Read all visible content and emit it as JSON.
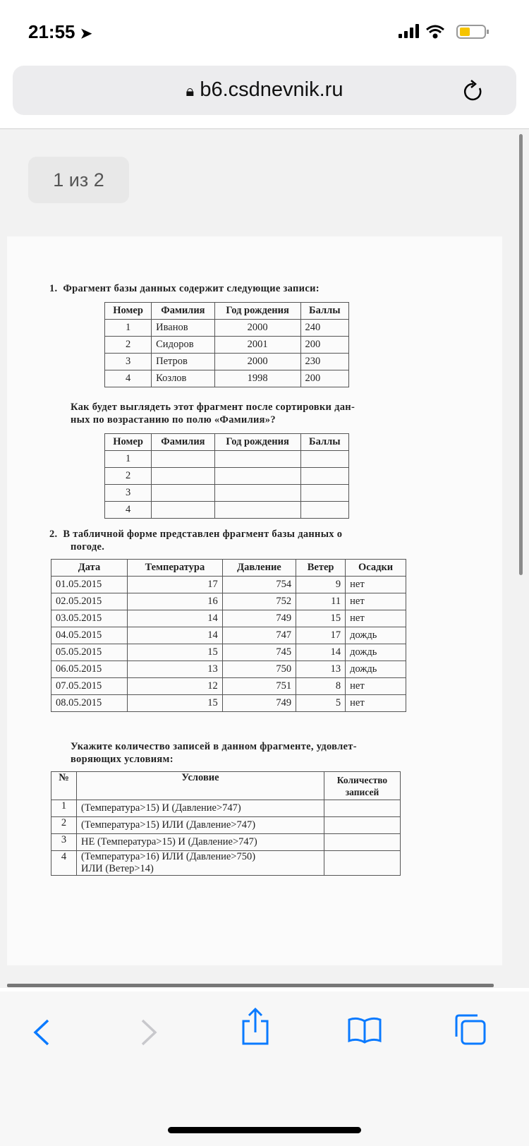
{
  "status_bar": {
    "time": "21:55",
    "location_icon": "location-arrow-icon",
    "signal_icon": "cellular-signal-icon",
    "wifi_icon": "wifi-icon",
    "battery_icon": "battery-low-icon",
    "battery_color": "#f6c400"
  },
  "browser": {
    "url": "b6.csdnevnik.ru",
    "lock_icon": "lock-icon",
    "reload_icon": "reload-icon"
  },
  "viewer": {
    "page_indicator": "1 из 2"
  },
  "document": {
    "q1": {
      "number": "1.",
      "text": "Фрагмент базы данных содержит следующие записи:",
      "headers": [
        "Номер",
        "Фамилия",
        "Год рождения",
        "Баллы"
      ],
      "rows": [
        [
          "1",
          "Иванов",
          "2000",
          "240"
        ],
        [
          "2",
          "Сидоров",
          "2001",
          "200"
        ],
        [
          "3",
          "Петров",
          "2000",
          "230"
        ],
        [
          "4",
          "Козлов",
          "1998",
          "200"
        ]
      ],
      "question_line1": "Как будет выглядеть этот фрагмент после сортировки дан-",
      "question_line2": "ных по возрастанию по полю «Фамилия»?",
      "answer_rows": [
        "1",
        "2",
        "3",
        "4"
      ]
    },
    "q2": {
      "number": "2.",
      "text_line1": "В табличной форме представлен фрагмент базы данных о",
      "text_line2": "погоде.",
      "headers": [
        "Дата",
        "Температура",
        "Давление",
        "Ветер",
        "Осадки"
      ],
      "rows": [
        [
          "01.05.2015",
          "17",
          "754",
          "9",
          "нет"
        ],
        [
          "02.05.2015",
          "16",
          "752",
          "11",
          "нет"
        ],
        [
          "03.05.2015",
          "14",
          "749",
          "15",
          "нет"
        ],
        [
          "04.05.2015",
          "14",
          "747",
          "17",
          "дождь"
        ],
        [
          "05.05.2015",
          "15",
          "745",
          "14",
          "дождь"
        ],
        [
          "06.05.2015",
          "13",
          "750",
          "13",
          "дождь"
        ],
        [
          "07.05.2015",
          "12",
          "751",
          "8",
          "нет"
        ],
        [
          "08.05.2015",
          "15",
          "749",
          "5",
          "нет"
        ]
      ],
      "task_line1": "Укажите количество записей в данном фрагменте, удовлет-",
      "task_line2": "воряющих условиям:",
      "cond_headers": [
        "№",
        "Условие",
        "Количество",
        "записей"
      ],
      "conditions": [
        [
          "1",
          "(Температура>15) И (Давление>747)"
        ],
        [
          "2",
          "(Температура>15) ИЛИ (Давление>747)"
        ],
        [
          "3",
          "НЕ (Температура>15) И (Давление>747)"
        ],
        [
          "4",
          "(Температура>16) ИЛИ (Давление>750)",
          "ИЛИ (Ветер>14)"
        ]
      ]
    }
  },
  "toolbar": {
    "back_icon": "chevron-left-icon",
    "forward_icon": "chevron-right-icon",
    "share_icon": "share-icon",
    "bookmarks_icon": "book-icon",
    "tabs_icon": "tabs-icon"
  }
}
